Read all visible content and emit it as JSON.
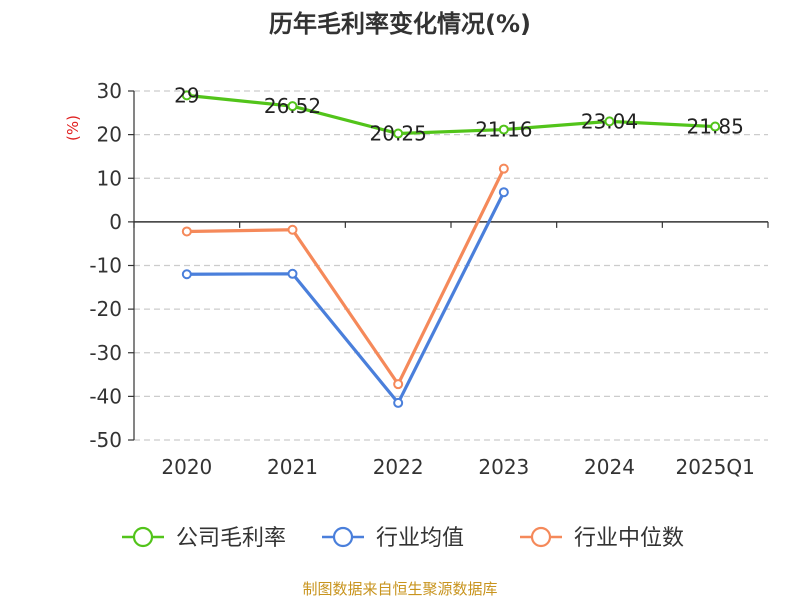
{
  "chart_data": {
    "type": "line",
    "title": "历年毛利率变化情况(%)",
    "ylabel": "(%)",
    "xlabel": "",
    "categories": [
      "2020",
      "2021",
      "2022",
      "2023",
      "2024",
      "2025Q1"
    ],
    "ylim": [
      -50,
      30
    ],
    "yticks": [
      30,
      20,
      10,
      0,
      -10,
      -20,
      -30,
      -40,
      -50
    ],
    "grid": true,
    "legend_position": "bottom",
    "series": [
      {
        "name": "公司毛利率",
        "color": "#52c41a",
        "values": [
          29,
          26.52,
          20.25,
          21.16,
          23.04,
          21.85
        ],
        "labels": [
          "29",
          "26.52",
          "20.25",
          "21.16",
          "23.04",
          "21.85"
        ]
      },
      {
        "name": "行业均值",
        "color": "#4a7fdb",
        "values": [
          -12,
          -11.9,
          -41.5,
          6.8,
          null,
          null
        ]
      },
      {
        "name": "行业中位数",
        "color": "#f5895a",
        "values": [
          -2.2,
          -1.8,
          -37.2,
          12.2,
          null,
          null
        ]
      }
    ]
  },
  "source_text": "制图数据来自恒生聚源数据库"
}
